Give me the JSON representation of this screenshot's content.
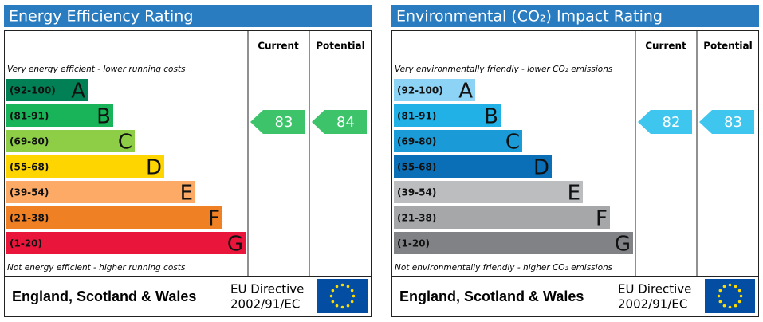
{
  "panels": [
    {
      "title": "Energy Efficiency Rating",
      "current_label": "Current",
      "potential_label": "Potential",
      "top_note": "Very energy efficient - lower running costs",
      "bottom_note": "Not energy efficient - higher running costs",
      "bands": [
        {
          "range": "(92-100)",
          "letter": "A",
          "color": "#008054"
        },
        {
          "range": "(81-91)",
          "letter": "B",
          "color": "#19b459"
        },
        {
          "range": "(69-80)",
          "letter": "C",
          "color": "#8dce46"
        },
        {
          "range": "(55-68)",
          "letter": "D",
          "color": "#ffd500"
        },
        {
          "range": "(39-54)",
          "letter": "E",
          "color": "#fcaa65"
        },
        {
          "range": "(21-38)",
          "letter": "F",
          "color": "#ef8023"
        },
        {
          "range": "(1-20)",
          "letter": "G",
          "color": "#e9153b"
        }
      ],
      "current": 83,
      "potential": 84,
      "arrow_color": "#3dc46a",
      "country": "England, Scotland & Wales",
      "directive_line1": "EU Directive",
      "directive_line2": "2002/91/EC"
    },
    {
      "title": "Environmental (CO₂) Impact Rating",
      "current_label": "Current",
      "potential_label": "Potential",
      "top_note": "Very environmentally friendly - lower CO₂ emissions",
      "bottom_note": "Not environmentally friendly - higher CO₂ emissions",
      "bands": [
        {
          "range": "(92-100)",
          "letter": "A",
          "color": "#8dd3f5"
        },
        {
          "range": "(81-91)",
          "letter": "B",
          "color": "#22b1e6"
        },
        {
          "range": "(69-80)",
          "letter": "C",
          "color": "#1a9ad6"
        },
        {
          "range": "(55-68)",
          "letter": "D",
          "color": "#0b6fb8"
        },
        {
          "range": "(39-54)",
          "letter": "E",
          "color": "#bbbdbf"
        },
        {
          "range": "(21-38)",
          "letter": "F",
          "color": "#a5a7a9"
        },
        {
          "range": "(1-20)",
          "letter": "G",
          "color": "#808285"
        }
      ],
      "current": 82,
      "potential": 83,
      "arrow_color": "#3fc6ef",
      "country": "England, Scotland & Wales",
      "directive_line1": "EU Directive",
      "directive_line2": "2002/91/EC"
    }
  ]
}
